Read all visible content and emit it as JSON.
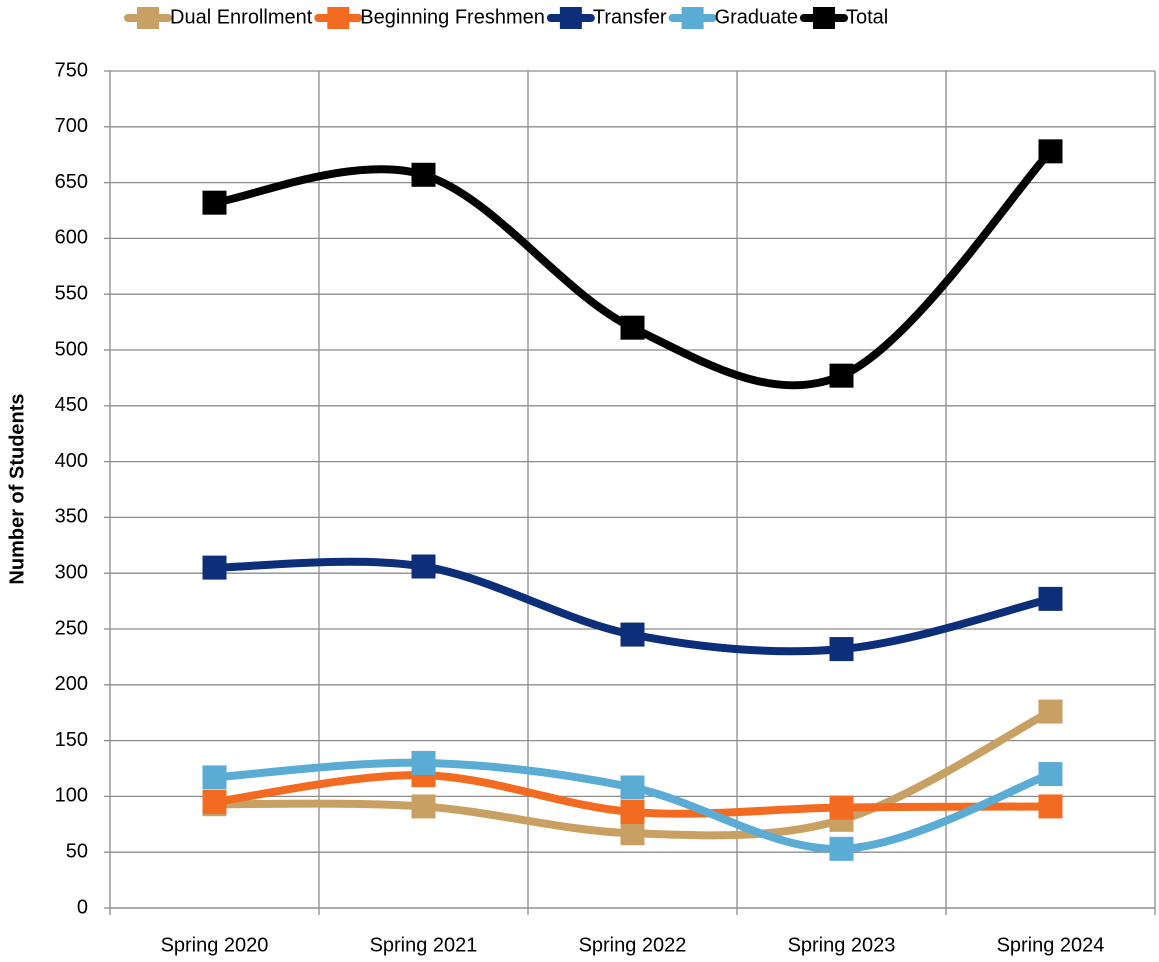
{
  "chart_data": {
    "type": "line",
    "smooth": true,
    "y_label": "Number of Students",
    "categories": [
      "Spring 2020",
      "Spring 2021",
      "Spring 2022",
      "Spring 2023",
      "Spring 2024"
    ],
    "series": [
      {
        "name": "Dual Enrollment",
        "color": "#c9a063",
        "values": [
          93,
          91,
          67,
          79,
          176
        ]
      },
      {
        "name": "Beginning Freshmen",
        "color": "#f26b21",
        "values": [
          95,
          119,
          86,
          90,
          91
        ]
      },
      {
        "name": "Transfer",
        "color": "#0d2f7a",
        "values": [
          305,
          306,
          245,
          232,
          277
        ]
      },
      {
        "name": "Graduate",
        "color": "#5aacd4",
        "values": [
          117,
          130,
          108,
          53,
          120
        ]
      },
      {
        "name": "Total",
        "color": "#000000",
        "values": [
          632,
          657,
          520,
          477,
          678
        ]
      }
    ],
    "ylim": [
      0,
      750
    ],
    "yticks": [
      0,
      50,
      100,
      150,
      200,
      250,
      300,
      350,
      400,
      450,
      500,
      550,
      600,
      650,
      700,
      750
    ],
    "grid": true,
    "legend": "top"
  }
}
